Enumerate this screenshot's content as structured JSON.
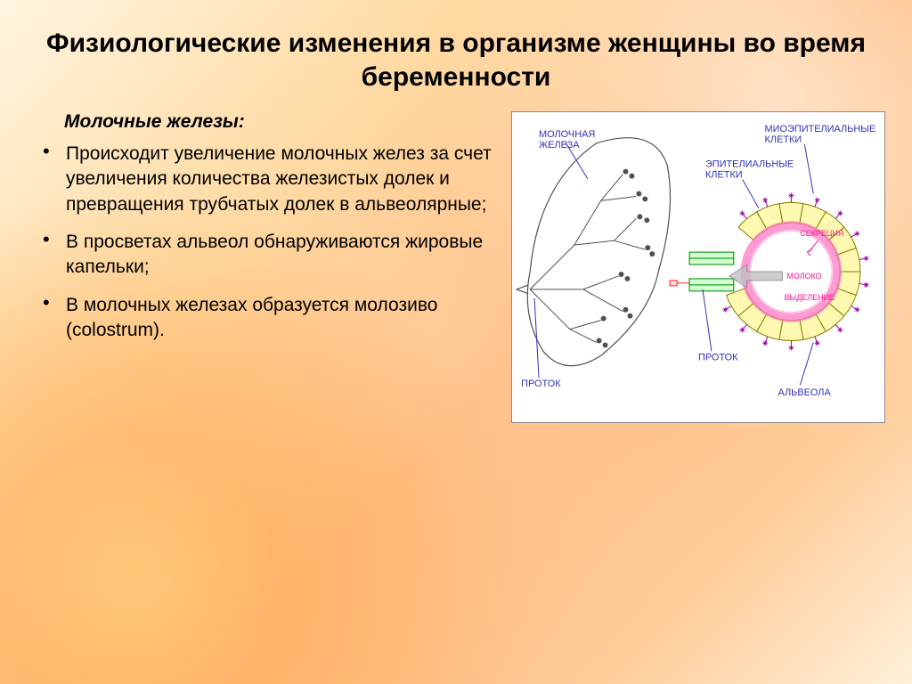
{
  "title": "Физиологические изменения в организме женщины во время беременности",
  "title_fontsize": 30,
  "subheading": "Молочные железы:",
  "subheading_fontsize": 21,
  "bullet_fontsize": 21,
  "bullets": [
    "Происходит увеличение молочных желез за счет увеличения количества железистых долек и превращения трубчатых долек в альвеолярные;",
    "В просветах альвеол обнаруживаются жировые капельки;",
    " В молочных железах образуется молозиво (colostrum)."
  ],
  "diagram": {
    "background": "#ffffff",
    "border_color": "#888888",
    "label_color": "#3030c0",
    "label_fontsize": 11,
    "pink_label_color": "#ff1090",
    "labels": {
      "gland": "МОЛОЧНАЯ\nЖЕЛЕЗА",
      "myoepithelial": "МИОЭПИТЕЛИАЛЬНЫЕ\nКЛЕТКИ",
      "epithelial": "ЭПИТЕЛИАЛЬНЫЕ\nКЛЕТКИ",
      "duct_left": "ПРОТОК",
      "duct_right": "ПРОТОК",
      "alveola": "АЛЬВЕОЛА",
      "secretion": "СЕКРЕЦИЯ",
      "milk": "МОЛОКО",
      "excretion": "ВЫДЕЛЕНИЕ"
    },
    "colors": {
      "gland_outline": "#505050",
      "cell_fill": "#fff8b0",
      "cell_stroke": "#808000",
      "myo_stroke": "#a000a0",
      "duct_fill": "#d0ffd0",
      "duct_stroke": "#008000",
      "arrow_fill": "#c0c0c0",
      "pink_ring": "#ff70c0",
      "center_fill": "#ffffff"
    }
  }
}
